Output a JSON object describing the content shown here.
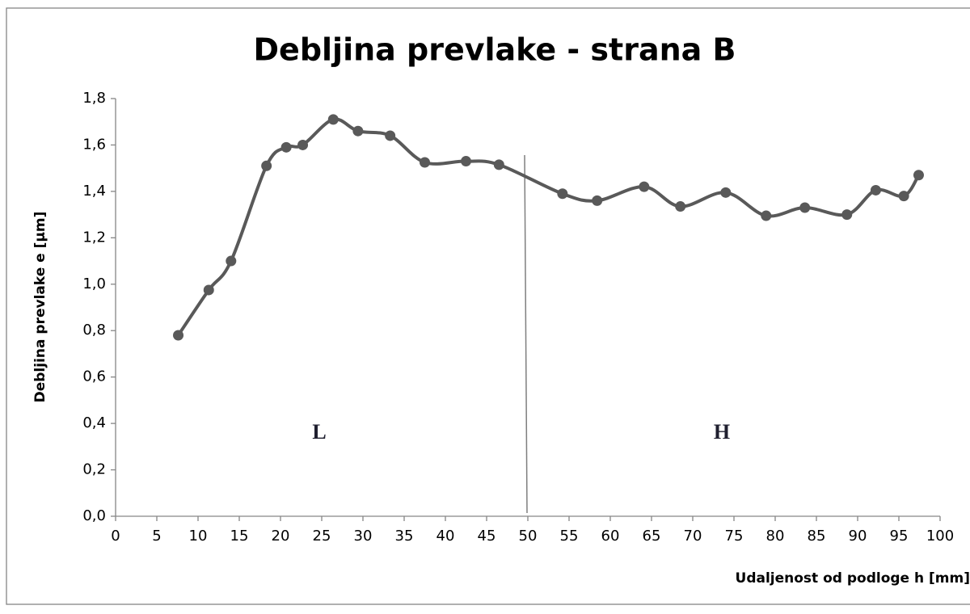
{
  "chart_data": {
    "type": "line",
    "title": "Debljina prevlake - strana B",
    "x_label": "Udaljenost od podloge h [mm]",
    "y_label": "Debljina prevlake e [µm]",
    "annotations": [
      "L",
      "H"
    ],
    "x": [
      7.6,
      11.3,
      14.0,
      18.3,
      20.7,
      22.7,
      26.4,
      29.4,
      33.3,
      37.5,
      42.5,
      46.5,
      54.2,
      58.4,
      64.1,
      68.5,
      74.0,
      78.9,
      83.6,
      88.7,
      92.2,
      95.6,
      97.4
    ],
    "series": [
      {
        "name": "Debljina prevlake",
        "color": "#595959",
        "values": [
          0.78,
          0.975,
          1.1,
          1.51,
          1.59,
          1.6,
          1.71,
          1.66,
          1.64,
          1.525,
          1.53,
          1.515,
          1.39,
          1.36,
          1.42,
          1.335,
          1.395,
          1.295,
          1.33,
          1.3,
          1.405,
          1.38,
          1.47
        ]
      }
    ],
    "xlim": [
      0,
      100
    ],
    "xticks": [
      0,
      5,
      10,
      15,
      20,
      25,
      30,
      35,
      40,
      45,
      50,
      55,
      60,
      65,
      70,
      75,
      80,
      85,
      90,
      95,
      100
    ],
    "ylim": [
      0,
      1.8
    ],
    "yticks": [
      {
        "value": 0,
        "label": "0,0"
      },
      {
        "value": 0.2,
        "label": "0,2"
      },
      {
        "value": 0.4,
        "label": "0,4"
      },
      {
        "value": 0.6,
        "label": "0,6"
      },
      {
        "value": 0.8,
        "label": "0,8"
      },
      {
        "value": 1.0,
        "label": "1,0"
      },
      {
        "value": 1.2,
        "label": "1,2"
      },
      {
        "value": 1.4,
        "label": "1,4"
      },
      {
        "value": 1.6,
        "label": "1,6"
      },
      {
        "value": 1.8,
        "label": "1,8"
      }
    ],
    "grid": false
  }
}
